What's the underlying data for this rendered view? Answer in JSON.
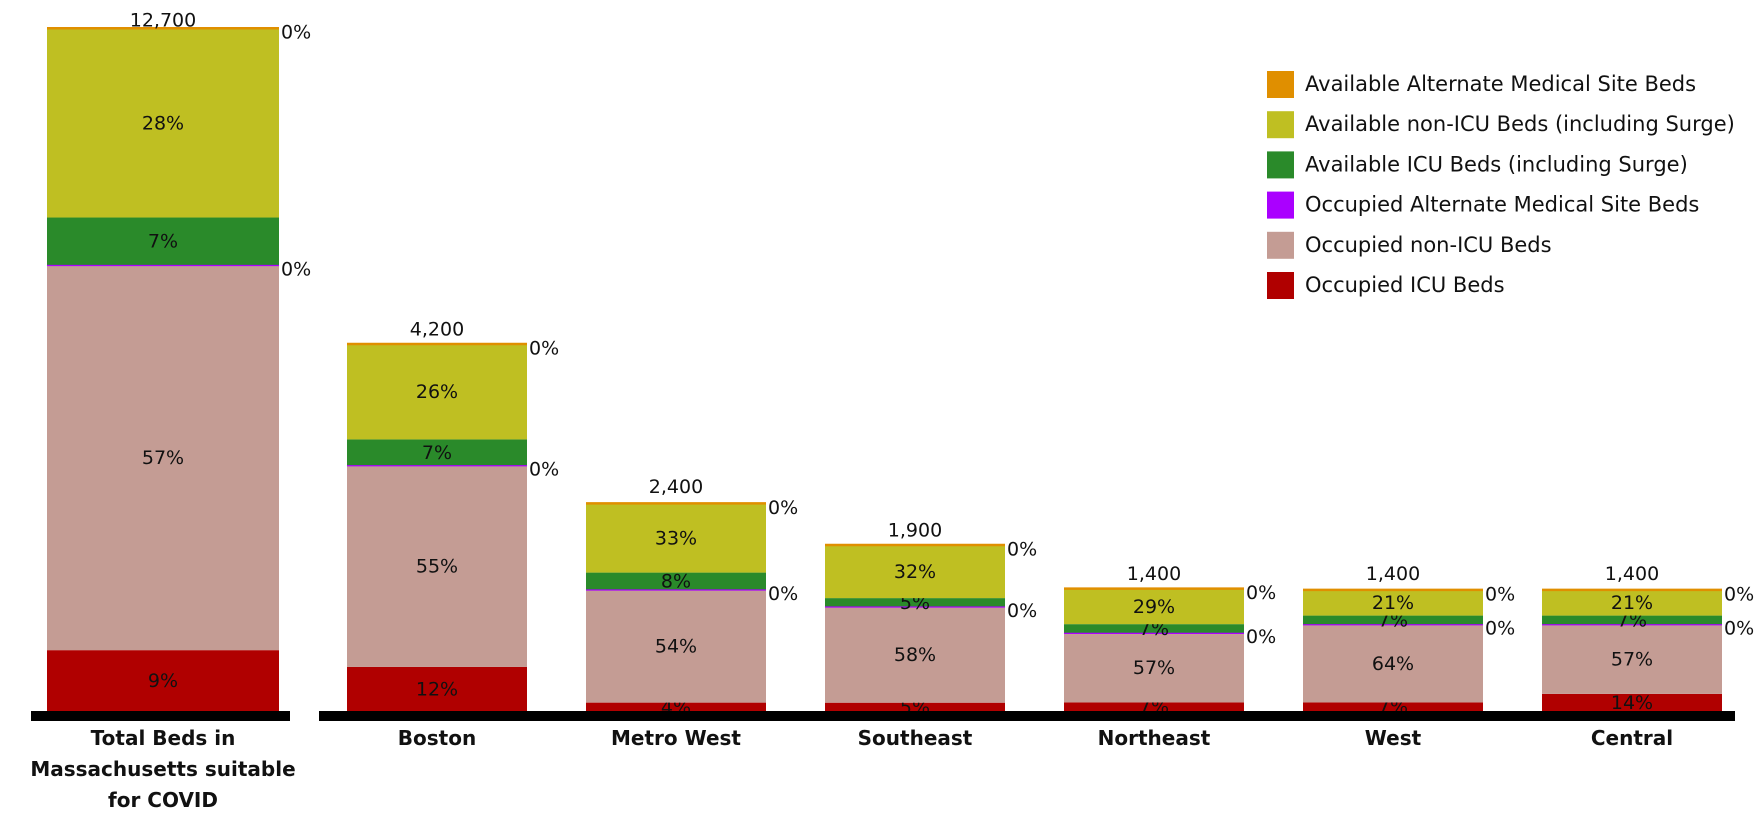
{
  "chart_data": [
    {
      "type": "bar",
      "categories": [
        "Total Beds in Massachusetts suitable for COVID"
      ],
      "totals": [
        12700
      ],
      "totals_labels": [
        "12,700"
      ],
      "series": [
        {
          "color": "#b00000",
          "values": [
            9
          ],
          "value_labels": [
            "9%"
          ]
        },
        {
          "color": "#c49c94",
          "values": [
            57
          ],
          "value_labels": [
            "57%"
          ]
        },
        {
          "color": "#aa00ff",
          "values": [
            0
          ],
          "value_labels": [
            "0%"
          ]
        },
        {
          "color": "#2a8a2a",
          "values": [
            7
          ],
          "value_labels": [
            "7%"
          ]
        },
        {
          "color": "#bfbf22",
          "values": [
            28
          ],
          "value_labels": [
            "28%"
          ]
        },
        {
          "color": "#e08f00",
          "values": [
            0
          ],
          "value_labels": [
            "0%"
          ]
        }
      ]
    },
    {
      "type": "bar",
      "categories": [
        "Boston",
        "Metro West",
        "Southeast",
        "Northeast",
        "West",
        "Central"
      ],
      "totals": [
        4200,
        2400,
        1900,
        1400,
        1400,
        1400
      ],
      "totals_labels": [
        "4,200",
        "2,400",
        "1,900",
        "1,400",
        "1,400",
        "1,400"
      ],
      "legend": "top-right",
      "series": [
        {
          "name": "Occupied ICU Beds",
          "color": "#b00000",
          "values": [
            12,
            4,
            5,
            7,
            7,
            14
          ],
          "value_labels": [
            "12%",
            "4%",
            "5%",
            "7%",
            "7%",
            "14%"
          ]
        },
        {
          "name": "Occupied non-ICU Beds",
          "color": "#c49c94",
          "values": [
            55,
            54,
            58,
            57,
            64,
            57
          ],
          "value_labels": [
            "55%",
            "54%",
            "58%",
            "57%",
            "64%",
            "57%"
          ]
        },
        {
          "name": "Occupied Alternate Medical Site Beds",
          "color": "#aa00ff",
          "values": [
            0,
            0,
            0,
            0,
            0,
            0
          ],
          "value_labels": [
            "0%",
            "0%",
            "0%",
            "0%",
            "0%",
            "0%"
          ]
        },
        {
          "name": "Available ICU Beds (including Surge)",
          "color": "#2a8a2a",
          "values": [
            7,
            8,
            5,
            7,
            7,
            7
          ],
          "value_labels": [
            "7%",
            "8%",
            "5%",
            "7%",
            "7%",
            "7%"
          ]
        },
        {
          "name": "Available non-ICU Beds (including Surge)",
          "color": "#bfbf22",
          "values": [
            26,
            33,
            32,
            29,
            21,
            21
          ],
          "value_labels": [
            "26%",
            "33%",
            "32%",
            "29%",
            "21%",
            "21%"
          ]
        },
        {
          "name": "Available Alternate Medical Site Beds",
          "color": "#e08f00",
          "values": [
            0,
            0,
            0,
            0,
            0,
            0
          ],
          "value_labels": [
            "0%",
            "0%",
            "0%",
            "0%",
            "0%",
            "0%"
          ]
        }
      ]
    }
  ]
}
